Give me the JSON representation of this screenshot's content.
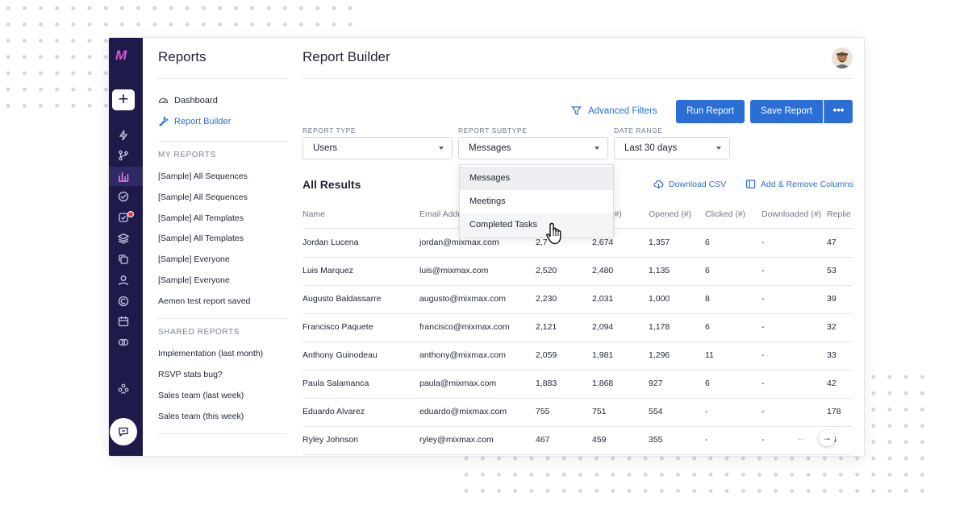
{
  "sidebar": {
    "title": "Reports",
    "nav": [
      {
        "label": "Dashboard",
        "icon": "dashboard-icon"
      },
      {
        "label": "Report Builder",
        "icon": "wrench-icon"
      }
    ],
    "my_reports_heading": "MY REPORTS",
    "my_reports": [
      "[Sample] All Sequences",
      "[Sample] All Sequences",
      "[Sample] All Templates",
      "[Sample] All Templates",
      "[Sample] Everyone",
      "[Sample] Everyone",
      "Aemen test report saved"
    ],
    "shared_heading": "SHARED REPORTS",
    "shared_reports": [
      "Implementation (last month)",
      "RSVP stats bug?",
      "Sales team (last week)",
      "Sales team (this week)"
    ]
  },
  "rail": {
    "new_label": "+",
    "icons": [
      "lightning-icon",
      "branch-icon",
      "bar-chart-icon",
      "inbox-icon",
      "task-icon",
      "layers-icon",
      "copy-icon",
      "user-icon",
      "circle-c-icon",
      "calendar-icon",
      "link-icon",
      "team-icon",
      "chat-icon"
    ],
    "accent": "#1e1b4b"
  },
  "header": {
    "title": "Report Builder",
    "advanced_filters": "Advanced Filters",
    "run_report": "Run Report",
    "save_report": "Save Report",
    "more": "•••"
  },
  "filters": {
    "report_type_label": "REPORT TYPE",
    "report_type_value": "Users",
    "report_subtype_label": "REPORT SUBTYPE",
    "report_subtype_value": "Messages",
    "date_range_label": "DATE RANGE",
    "date_range_value": "Last 30 days"
  },
  "dropdown": {
    "options": [
      "Messages",
      "Meetings",
      "Completed Tasks"
    ],
    "selected": "Messages",
    "hovered": "Completed Tasks"
  },
  "results": {
    "title": "All Results",
    "download_csv": "Download CSV",
    "add_remove_columns": "Add & Remove Columns",
    "columns": [
      "Name",
      "Email Addr",
      "",
      "ered (#)",
      "Opened (#)",
      "Clicked (#)",
      "Downloaded (#)",
      "Replie"
    ],
    "rows": [
      [
        "Jordan Lucena",
        "jordan@mixmax.com",
        "2,7",
        "2,674",
        "1,357",
        "6",
        "-",
        "47"
      ],
      [
        "Luis Marquez",
        "luis@mixmax.com",
        "2,520",
        "2,480",
        "1,135",
        "6",
        "-",
        "53"
      ],
      [
        "Augusto Baldassarre",
        "augusto@mixmax.com",
        "2,230",
        "2,031",
        "1,000",
        "8",
        "-",
        "39"
      ],
      [
        "Francisco Paquete",
        "francisco@mixmax.com",
        "2,121",
        "2,094",
        "1,178",
        "6",
        "-",
        "32"
      ],
      [
        "Anthony Guinodeau",
        "anthony@mixmax.com",
        "2,059",
        "1,981",
        "1,296",
        "11",
        "-",
        "33"
      ],
      [
        "Paula Salamanca",
        "paula@mixmax.com",
        "1,883",
        "1,868",
        "927",
        "6",
        "-",
        "42"
      ],
      [
        "Eduardo Alvarez",
        "eduardo@mixmax.com",
        "755",
        "751",
        "554",
        "-",
        "-",
        "178"
      ],
      [
        "Ryley Johnson",
        "ryley@mixmax.com",
        "467",
        "459",
        "355",
        "-",
        "-",
        "76"
      ]
    ]
  },
  "pagination": {
    "prev": "←",
    "next": "→"
  },
  "colors": {
    "primary": "#2b6fd6",
    "rail": "#1e1b4b",
    "logo": "#e14fd6",
    "badge": "#e53b4f"
  }
}
